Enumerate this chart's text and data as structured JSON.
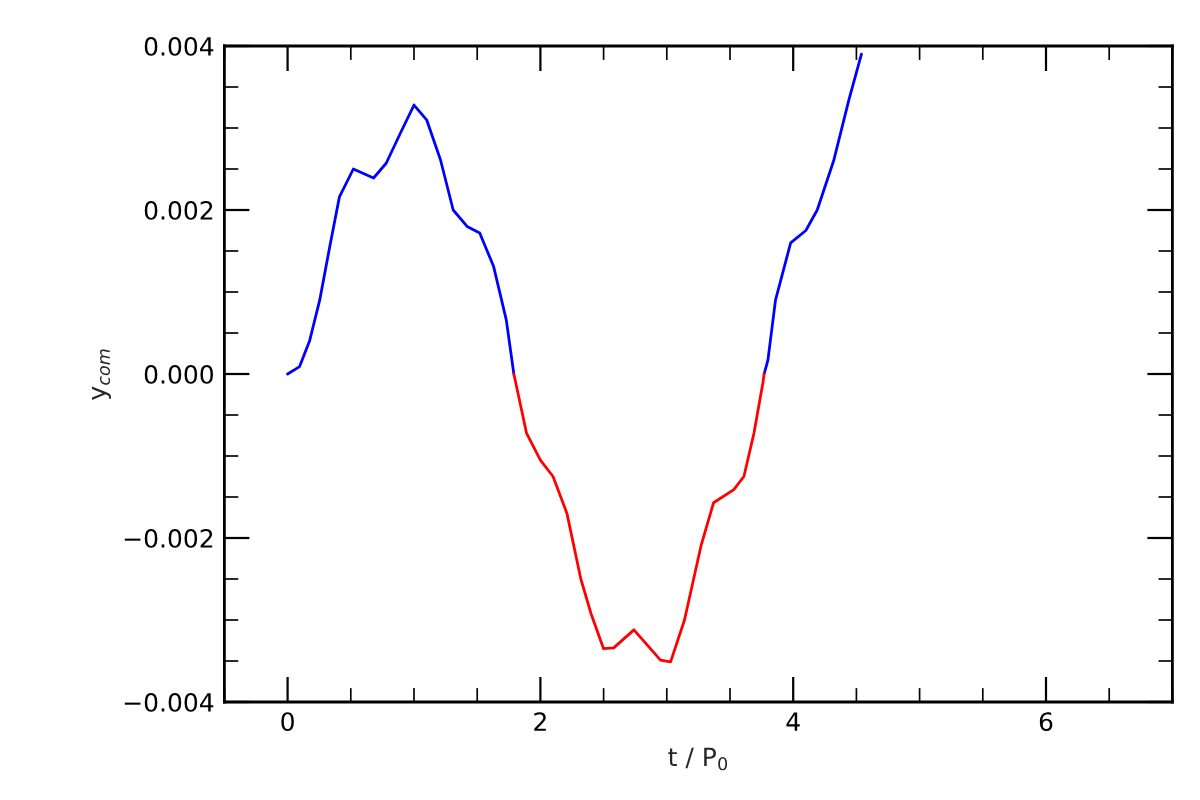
{
  "chart_data": {
    "type": "line",
    "xlabel": "t / P$_{0}$",
    "ylabel": "y$_{com}$",
    "xlim": [
      -0.5,
      7
    ],
    "ylim": [
      -0.004,
      0.004
    ],
    "xticks": [
      0,
      2,
      4,
      6
    ],
    "yticks": [
      {
        "value": -0.004,
        "label": "−0.004"
      },
      {
        "value": -0.002,
        "label": "−0.002"
      },
      {
        "value": 0,
        "label": "0.000"
      },
      {
        "value": 0.002,
        "label": "0.002"
      },
      {
        "value": 0.004,
        "label": "0.004"
      }
    ],
    "grid": false,
    "marker": "none",
    "line_style": "solid",
    "series": [
      {
        "color": "#0000ff",
        "x": [
          0,
          0.095,
          0.175,
          0.254,
          0.333,
          0.41,
          0.52,
          0.68,
          0.78,
          0.89,
          1.0,
          1.1,
          1.21,
          1.31,
          1.42,
          1.52,
          1.63,
          1.73,
          1.79,
          null,
          3.77,
          3.8,
          3.86,
          3.98,
          4.1,
          4.19,
          4.32,
          4.44,
          4.54
        ],
        "values": [
          0,
          9e-05,
          0.00041,
          0.0009,
          0.00155,
          0.00216,
          0.0025,
          0.00239,
          0.00257,
          0.00293,
          0.00328,
          0.0031,
          0.00261,
          0.002,
          0.0018,
          0.00172,
          0.00131,
          0.00066,
          0,
          null,
          0,
          0.00017,
          0.0009,
          0.0016,
          0.00175,
          0.002,
          0.0026,
          0.00334,
          0.0039
        ]
      },
      {
        "color": "#ff0000",
        "x": [
          1.79,
          1.89,
          2.0,
          2.1,
          2.21,
          2.32,
          2.4,
          2.5,
          2.58,
          2.74,
          2.95,
          3.03,
          3.14,
          3.27,
          3.37,
          3.53,
          3.61,
          3.69,
          3.76,
          3.77
        ],
        "values": [
          0,
          -0.00072,
          -0.00105,
          -0.00125,
          -0.0017,
          -0.0025,
          -0.00292,
          -0.00335,
          -0.00334,
          -0.00312,
          -0.00349,
          -0.00351,
          -0.003,
          -0.0021,
          -0.00157,
          -0.00141,
          -0.00125,
          -0.00072,
          -0.00011,
          0
        ]
      }
    ]
  }
}
